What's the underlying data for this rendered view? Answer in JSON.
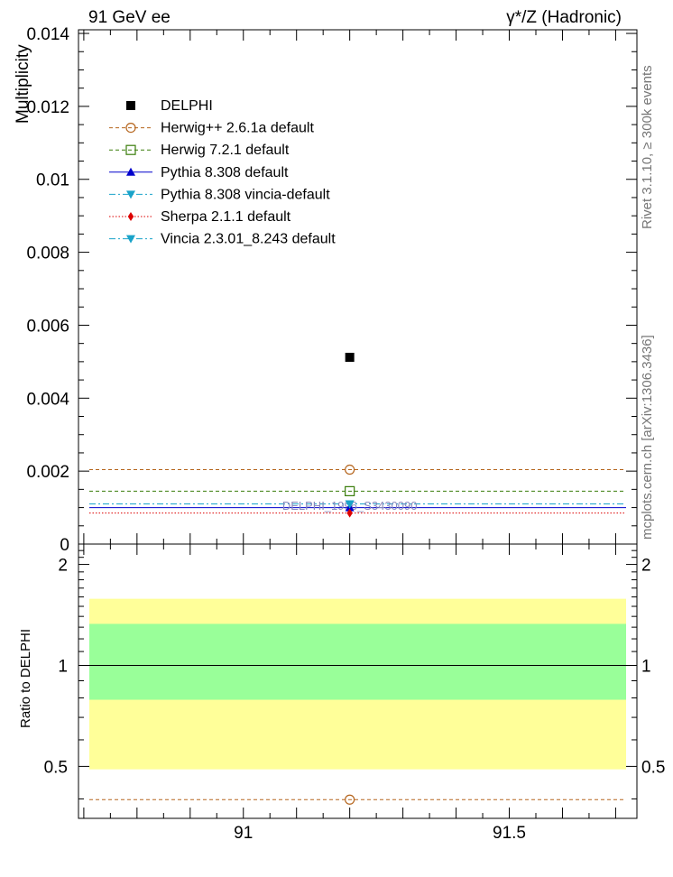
{
  "header": {
    "left_title": "91 GeV ee",
    "right_title": "γ*/Z (Hadronic)"
  },
  "side_labels": {
    "rivet": "Rivet 3.1.10, ≥ 300k events",
    "mcplots": "mcplots.cern.ch [arXiv:1306.3436]"
  },
  "chart_data": [
    {
      "type": "scatter",
      "ylabel": "Multiplicity",
      "xlim": [
        90.69,
        91.74
      ],
      "ylim": [
        0,
        0.0141
      ],
      "ytick_labels": [
        "0",
        "0.002",
        "0.004",
        "0.006",
        "0.008",
        "0.01",
        "0.012",
        "0.014"
      ],
      "yticks": [
        0,
        0.002,
        0.004,
        0.006,
        0.008,
        0.01,
        0.012,
        0.014
      ],
      "watermark": "DELPHI_1996_S3430090",
      "legend_position": "top-left",
      "series": [
        {
          "name": "DELPHI",
          "kind": "data",
          "color": "#000000",
          "marker": "square-filled",
          "line": "none",
          "x": 91.2,
          "y": 0.00512
        },
        {
          "name": "Herwig++ 2.6.1a default",
          "color": "#b5651d",
          "marker": "circle-open",
          "line": "dashed",
          "x": 91.2,
          "y": 0.00204
        },
        {
          "name": "Herwig 7.2.1 default",
          "color": "#3a7d0a",
          "marker": "square-open",
          "line": "dashed",
          "x": 91.2,
          "y": 0.00145
        },
        {
          "name": "Pythia 8.308 default",
          "color": "#0000cc",
          "marker": "triangle-up",
          "line": "solid",
          "x": 91.2,
          "y": 0.001
        },
        {
          "name": "Pythia 8.308 vincia-default",
          "color": "#1aa3c9",
          "marker": "triangle-down",
          "line": "dashdot",
          "x": 91.2,
          "y": 0.0011
        },
        {
          "name": "Sherpa 2.1.1 default",
          "color": "#dd0000",
          "marker": "diamond",
          "line": "dotted",
          "x": 91.2,
          "y": 0.00085
        },
        {
          "name": "Vincia 2.3.01_8.243 default",
          "color": "#1aa3c9",
          "marker": "triangle-down",
          "line": "dashdot",
          "x": 91.2,
          "y": 0.0011
        }
      ]
    },
    {
      "type": "scatter",
      "ylabel": "Ratio to DELPHI",
      "xlim": [
        90.69,
        91.74
      ],
      "ylim": [
        0.35,
        2.3
      ],
      "xtick_labels": [
        "91",
        "91.5"
      ],
      "xticks": [
        91,
        91.5
      ],
      "ytick_labels": [
        "0.5",
        "1",
        "2"
      ],
      "yticks": [
        0.5,
        1,
        2
      ],
      "bands": [
        {
          "name": "total uncertainty",
          "color": "#ffff99",
          "low": 0.49,
          "high": 1.58
        },
        {
          "name": "stat uncertainty",
          "color": "#99ff99",
          "low": 0.79,
          "high": 1.33
        }
      ],
      "reference_line": 1,
      "ratios": [
        {
          "name": "Herwig++ 2.6.1a default",
          "color": "#b5651d",
          "marker": "circle-open",
          "x": 91.2,
          "y": 0.398
        }
      ]
    }
  ]
}
